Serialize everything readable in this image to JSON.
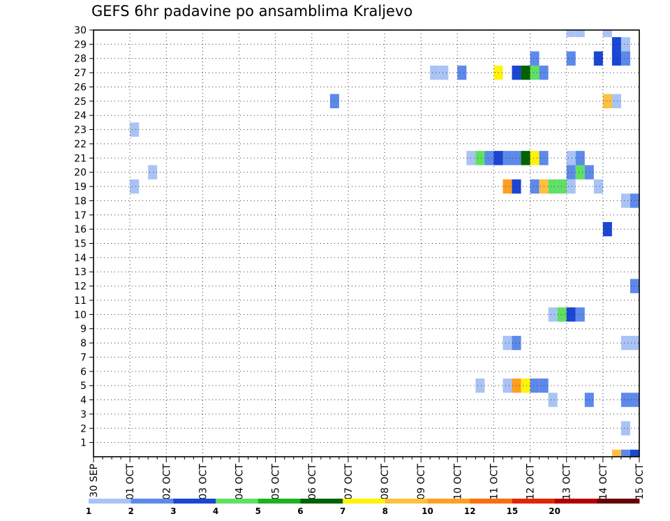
{
  "chart_data": {
    "type": "heatmap",
    "title": "GEFS 6hr padavine po ansamblima Kraljevo",
    "xlabel": "",
    "ylabel": "",
    "x_tick_labels": [
      "30 SEP",
      "01 OCT",
      "02 OCT",
      "03 OCT",
      "04 OCT",
      "05 OCT",
      "06 OCT",
      "07 OCT",
      "08 OCT",
      "09 OCT",
      "10 OCT",
      "11 OCT",
      "12 OCT",
      "13 OCT",
      "14 OCT",
      "15 OCT"
    ],
    "y_tick_labels": [
      "1",
      "2",
      "3",
      "4",
      "5",
      "6",
      "7",
      "8",
      "9",
      "10",
      "11",
      "12",
      "13",
      "14",
      "15",
      "16",
      "17",
      "18",
      "19",
      "20",
      "21",
      "22",
      "23",
      "24",
      "25",
      "26",
      "27",
      "28",
      "29",
      "30"
    ],
    "x_range": [
      0,
      15
    ],
    "y_range": [
      0,
      30
    ],
    "time_step_days": 0.25,
    "grid": true,
    "colorbar": {
      "labels": [
        "1",
        "2",
        "3",
        "4",
        "5",
        "6",
        "7",
        "8",
        "10",
        "12",
        "15",
        "20"
      ],
      "colors": [
        "#a9c3f5",
        "#5d89ea",
        "#1b45d3",
        "#5fe064",
        "#1db31f",
        "#016300",
        "#fff309",
        "#ffc040",
        "#ff9e21",
        "#fc6d0c",
        "#e12500",
        "#b40000",
        "#690000"
      ]
    },
    "cells": [
      {
        "t": 13.0,
        "m": 30,
        "v": 1.5
      },
      {
        "t": 13.25,
        "m": 30,
        "v": 1.5
      },
      {
        "t": 14.0,
        "m": 30,
        "v": 1.5
      },
      {
        "t": 14.25,
        "m": 29,
        "v": 3.5
      },
      {
        "t": 14.5,
        "m": 29,
        "v": 1.5
      },
      {
        "t": 12.0,
        "m": 28,
        "v": 2.5
      },
      {
        "t": 13.0,
        "m": 28,
        "v": 2.5
      },
      {
        "t": 13.75,
        "m": 28,
        "v": 3.5
      },
      {
        "t": 14.25,
        "m": 28,
        "v": 3.5
      },
      {
        "t": 14.5,
        "m": 28,
        "v": 2.5
      },
      {
        "t": 9.25,
        "m": 27,
        "v": 1.5
      },
      {
        "t": 9.5,
        "m": 27,
        "v": 1.5
      },
      {
        "t": 10.0,
        "m": 27,
        "v": 2.5
      },
      {
        "t": 11.0,
        "m": 27,
        "v": 7.5
      },
      {
        "t": 11.5,
        "m": 27,
        "v": 3.5
      },
      {
        "t": 11.75,
        "m": 27,
        "v": 6.5
      },
      {
        "t": 12.0,
        "m": 27,
        "v": 4.5
      },
      {
        "t": 12.25,
        "m": 27,
        "v": 2.5
      },
      {
        "t": 6.5,
        "m": 25,
        "v": 2.5
      },
      {
        "t": 14.0,
        "m": 25,
        "v": 9.0
      },
      {
        "t": 14.25,
        "m": 25,
        "v": 1.5
      },
      {
        "t": 1.0,
        "m": 23,
        "v": 1.5
      },
      {
        "t": 10.25,
        "m": 21,
        "v": 1.5
      },
      {
        "t": 10.5,
        "m": 21,
        "v": 4.5
      },
      {
        "t": 10.75,
        "m": 21,
        "v": 2.5
      },
      {
        "t": 11.0,
        "m": 21,
        "v": 3.5
      },
      {
        "t": 11.25,
        "m": 21,
        "v": 2.5
      },
      {
        "t": 11.5,
        "m": 21,
        "v": 2.5
      },
      {
        "t": 11.75,
        "m": 21,
        "v": 6.5
      },
      {
        "t": 12.0,
        "m": 21,
        "v": 7.5
      },
      {
        "t": 12.25,
        "m": 21,
        "v": 2.5
      },
      {
        "t": 13.0,
        "m": 21,
        "v": 1.5
      },
      {
        "t": 13.25,
        "m": 21,
        "v": 2.5
      },
      {
        "t": 1.5,
        "m": 20,
        "v": 1.5
      },
      {
        "t": 13.0,
        "m": 20,
        "v": 2.5
      },
      {
        "t": 13.25,
        "m": 20,
        "v": 4.5
      },
      {
        "t": 13.5,
        "m": 20,
        "v": 2.5
      },
      {
        "t": 1.0,
        "m": 19,
        "v": 1.5
      },
      {
        "t": 11.25,
        "m": 19,
        "v": 11.0
      },
      {
        "t": 11.5,
        "m": 19,
        "v": 3.5
      },
      {
        "t": 12.0,
        "m": 19,
        "v": 2.5
      },
      {
        "t": 12.25,
        "m": 19,
        "v": 9.0
      },
      {
        "t": 12.5,
        "m": 19,
        "v": 4.5
      },
      {
        "t": 12.75,
        "m": 19,
        "v": 4.5
      },
      {
        "t": 13.0,
        "m": 19,
        "v": 1.5
      },
      {
        "t": 13.75,
        "m": 19,
        "v": 1.5
      },
      {
        "t": 14.5,
        "m": 18,
        "v": 1.5
      },
      {
        "t": 14.75,
        "m": 18,
        "v": 2.5
      },
      {
        "t": 14.0,
        "m": 16,
        "v": 3.5
      },
      {
        "t": 14.75,
        "m": 12,
        "v": 2.5
      },
      {
        "t": 12.5,
        "m": 10,
        "v": 1.5
      },
      {
        "t": 12.75,
        "m": 10,
        "v": 4.5
      },
      {
        "t": 13.0,
        "m": 10,
        "v": 3.5
      },
      {
        "t": 13.25,
        "m": 10,
        "v": 2.5
      },
      {
        "t": 11.25,
        "m": 8,
        "v": 1.5
      },
      {
        "t": 11.5,
        "m": 8,
        "v": 2.5
      },
      {
        "t": 14.5,
        "m": 8,
        "v": 1.5
      },
      {
        "t": 14.75,
        "m": 8,
        "v": 1.5
      },
      {
        "t": 10.5,
        "m": 5,
        "v": 1.5
      },
      {
        "t": 11.25,
        "m": 5,
        "v": 1.5
      },
      {
        "t": 11.5,
        "m": 5,
        "v": 11.0
      },
      {
        "t": 11.75,
        "m": 5,
        "v": 7.5
      },
      {
        "t": 12.0,
        "m": 5,
        "v": 2.5
      },
      {
        "t": 12.25,
        "m": 5,
        "v": 2.5
      },
      {
        "t": 12.5,
        "m": 4,
        "v": 1.5
      },
      {
        "t": 13.5,
        "m": 4,
        "v": 2.5
      },
      {
        "t": 14.5,
        "m": 4,
        "v": 2.5
      },
      {
        "t": 14.75,
        "m": 4,
        "v": 2.5
      },
      {
        "t": 14.5,
        "m": 2,
        "v": 1.5
      },
      {
        "t": 14.25,
        "m": 0,
        "v": 9.0
      },
      {
        "t": 14.5,
        "m": 0,
        "v": 2.5
      },
      {
        "t": 14.75,
        "m": 0,
        "v": 3.5
      }
    ]
  }
}
